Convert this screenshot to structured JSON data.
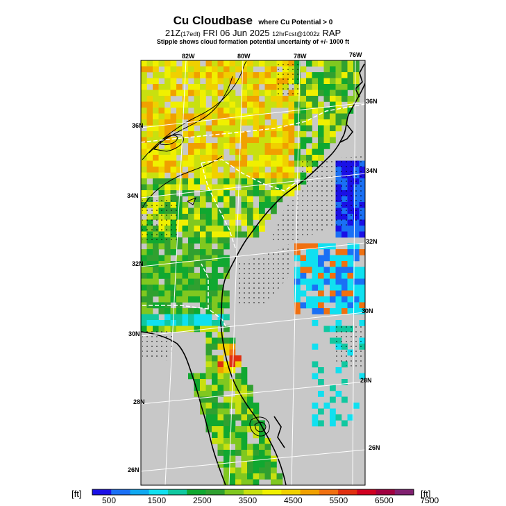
{
  "title": {
    "main": "Cu Cloudbase",
    "qualifier": "where Cu Potential > 0"
  },
  "subtitle": {
    "valid_time": "21Z",
    "local_time": "(17edt)",
    "date": "FRI 06 Jun 2025",
    "forecast": "12hrFcst@1002z",
    "model": "RAP"
  },
  "note": "Stipple shows cloud formation potential uncertainty of +/- 1000 ft",
  "longitude_labels": [
    "82W",
    "80W",
    "78W",
    "76W"
  ],
  "latitude_labels": [
    "36N",
    "34N",
    "32N",
    "30N",
    "28N",
    "26N"
  ],
  "colorbar": {
    "unit": "[ft]",
    "tick_labels": [
      "500",
      "1500",
      "2500",
      "3500",
      "4500",
      "5500",
      "6500",
      "7500"
    ],
    "colors": [
      "#1a10e6",
      "#1a70f5",
      "#10a8f0",
      "#10e0f0",
      "#10c8a0",
      "#10a830",
      "#30a030",
      "#80c820",
      "#c8e010",
      "#f0f000",
      "#f0d000",
      "#f0a000",
      "#f07010",
      "#e03010",
      "#d00020",
      "#a00040",
      "#802070"
    ]
  },
  "colors": {
    "land_no_data": "#c8c8c8",
    "ocean_no_data": "#c8c8c8",
    "coastline": "#000000",
    "grid_lines": "#ffffff"
  }
}
